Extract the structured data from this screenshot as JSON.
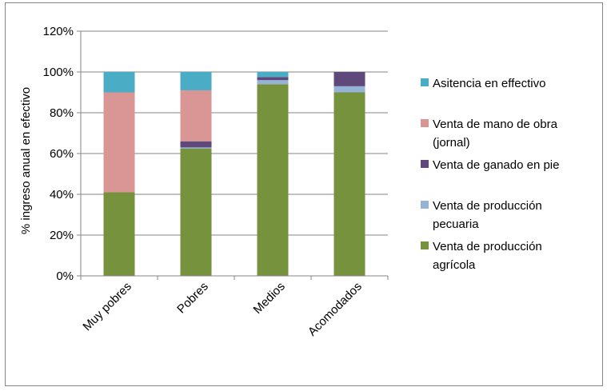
{
  "chart_data": {
    "type": "bar",
    "stacked": true,
    "categories": [
      "Muy pobres",
      "Pobres",
      "Medios",
      "Acomodados"
    ],
    "series": [
      {
        "name": "Venta de producción agrícola",
        "color": "#76923C",
        "values": [
          41,
          62.5,
          94,
          90
        ]
      },
      {
        "name": "Venta de producción pecuaria",
        "color": "#95B3D7",
        "values": [
          0,
          0.5,
          2,
          3
        ]
      },
      {
        "name": "Venta de ganado en pie",
        "color": "#5F497A",
        "values": [
          0,
          3,
          1.5,
          7
        ]
      },
      {
        "name": "Venta de mano de obra (jornal)",
        "color": "#D99694",
        "values": [
          49,
          25,
          0,
          0
        ]
      },
      {
        "name": "Asitencia en effectivo",
        "color": "#4BACC6",
        "values": [
          10,
          9,
          2.5,
          0
        ]
      }
    ],
    "legend": [
      {
        "label_lines": [
          "Asitencia en effectivo"
        ],
        "color": "#4BACC6"
      },
      {
        "label_lines": [
          "Venta de mano de obra",
          "(jornal)"
        ],
        "color": "#D99694"
      },
      {
        "label_lines": [
          "Venta de ganado en pie"
        ],
        "color": "#5F497A"
      },
      {
        "label_lines": [
          "Venta de producción",
          "pecuaria"
        ],
        "color": "#95B3D7"
      },
      {
        "label_lines": [
          "Venta de producción",
          "agrícola"
        ],
        "color": "#76923C"
      }
    ],
    "ylabel": "% ingreso anual en efectivo",
    "ylim": [
      0,
      120
    ],
    "yticks": [
      0,
      20,
      40,
      60,
      80,
      100,
      120
    ],
    "ytick_labels": [
      "0%",
      "20%",
      "40%",
      "60%",
      "80%",
      "100%",
      "120%"
    ],
    "grid": true,
    "legend_position": "right"
  }
}
